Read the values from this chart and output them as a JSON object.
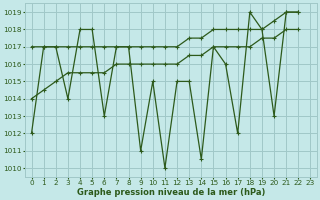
{
  "xlabel": "Graphe pression niveau de la mer (hPa)",
  "background_color": "#c5e8e8",
  "grid_color": "#a0c8c8",
  "line_color": "#2d5a1b",
  "ylim": [
    1009.5,
    1019.5
  ],
  "yticks": [
    1010,
    1011,
    1012,
    1013,
    1014,
    1015,
    1016,
    1017,
    1018,
    1019
  ],
  "xlim": [
    -0.5,
    23.5
  ],
  "xticks": [
    0,
    1,
    2,
    3,
    4,
    5,
    6,
    7,
    8,
    9,
    10,
    11,
    12,
    13,
    14,
    15,
    16,
    17,
    18,
    19,
    20,
    21,
    22,
    23
  ],
  "series": [
    [
      1012,
      1017,
      1017,
      1014,
      1018,
      1018,
      1013,
      1017,
      1017,
      1011,
      1015,
      1010,
      1015,
      1015,
      1010.5,
      1017,
      1016,
      1012,
      1019,
      1018,
      1013,
      1019,
      1019
    ],
    [
      1017,
      1017,
      1017,
      1017,
      1017,
      1017,
      1017,
      1017,
      1017,
      1017,
      1017,
      1017,
      1017,
      1017.5,
      1017.5,
      1018,
      1018,
      1018,
      1018,
      1018,
      1018.5,
      1019,
      1019
    ],
    [
      1014,
      1014.5,
      1015,
      1015.5,
      1015.5,
      1015.5,
      1015.5,
      1016,
      1016,
      1016,
      1016,
      1016,
      1016,
      1016.5,
      1016.5,
      1017,
      1017,
      1017,
      1017,
      1017.5,
      1017.5,
      1018,
      1018
    ]
  ]
}
